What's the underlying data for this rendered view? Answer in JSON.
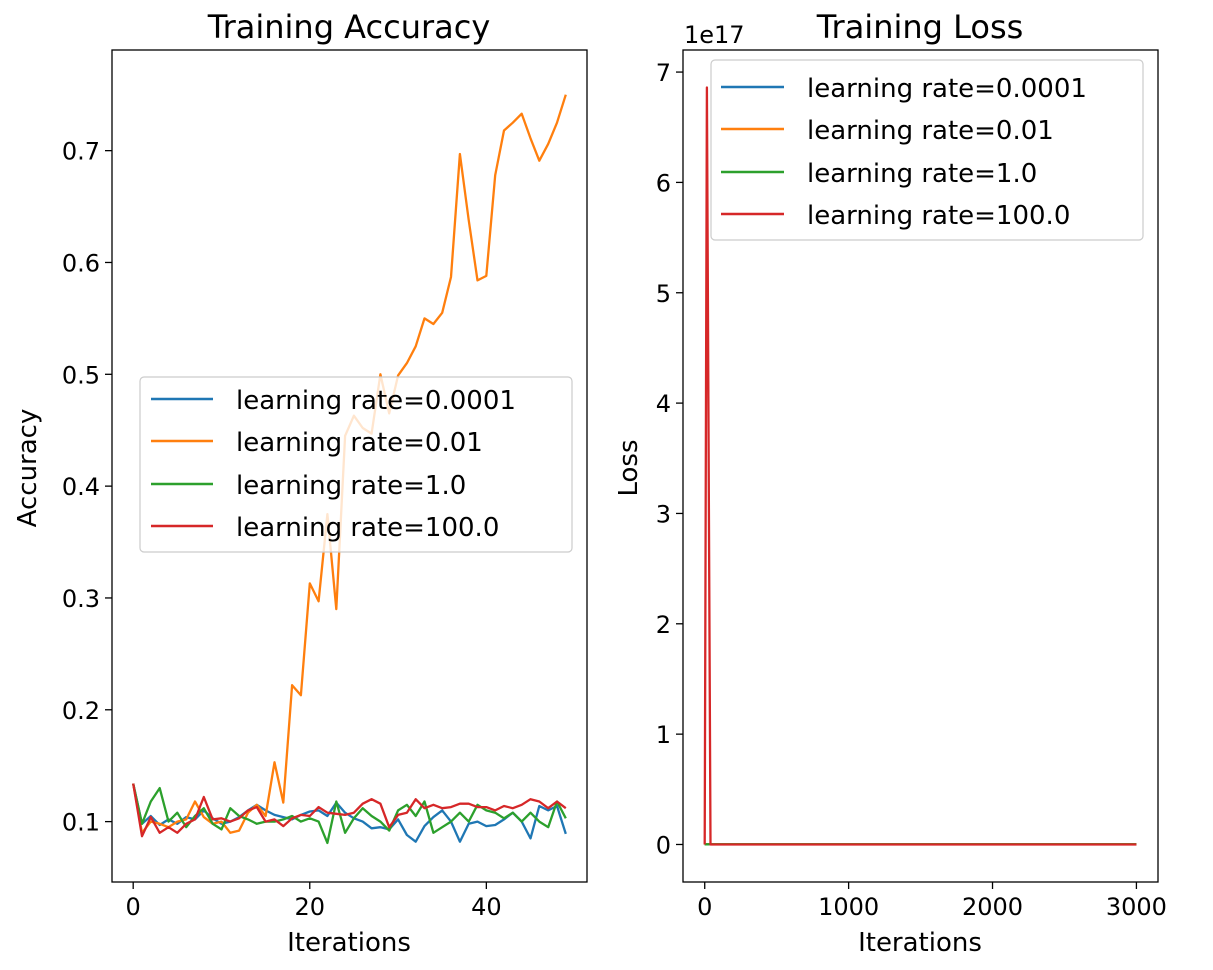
{
  "colors": {
    "lr_0001": "#1f77b4",
    "lr_001": "#ff7f0e",
    "lr_1": "#2ca02c",
    "lr_100": "#d62728"
  },
  "chart_data": [
    {
      "type": "line",
      "title": "Training Accuracy",
      "xlabel": "Iterations",
      "ylabel": "Accuracy",
      "xlim": [
        -2.4,
        51.4
      ],
      "ylim": [
        0.046,
        0.79
      ],
      "xticks": [
        0,
        20,
        40
      ],
      "xtick_labels": [
        "0",
        "20",
        "40"
      ],
      "yticks": [
        0.1,
        0.2,
        0.3,
        0.4,
        0.5,
        0.6,
        0.7
      ],
      "ytick_labels": [
        "0.1",
        "0.2",
        "0.3",
        "0.4",
        "0.5",
        "0.6",
        "0.7"
      ],
      "grid": false,
      "legend_loc": "center-left",
      "x": [
        0,
        1,
        2,
        3,
        4,
        5,
        6,
        7,
        8,
        9,
        10,
        11,
        12,
        13,
        14,
        15,
        16,
        17,
        18,
        19,
        20,
        21,
        22,
        23,
        24,
        25,
        26,
        27,
        28,
        29,
        30,
        31,
        32,
        33,
        34,
        35,
        36,
        37,
        38,
        39,
        40,
        41,
        42,
        43,
        44,
        45,
        46,
        47,
        48,
        49
      ],
      "series": [
        {
          "name": "learning rate=0.0001",
          "color_key": "lr_0001",
          "values": [
            0.134,
            0.098,
            0.105,
            0.097,
            0.102,
            0.098,
            0.104,
            0.102,
            0.11,
            0.103,
            0.098,
            0.1,
            0.104,
            0.11,
            0.115,
            0.11,
            0.106,
            0.104,
            0.102,
            0.106,
            0.109,
            0.11,
            0.105,
            0.117,
            0.108,
            0.103,
            0.1,
            0.094,
            0.095,
            0.093,
            0.102,
            0.088,
            0.082,
            0.096,
            0.104,
            0.11,
            0.1,
            0.082,
            0.098,
            0.1,
            0.096,
            0.097,
            0.102,
            0.108,
            0.1,
            0.085,
            0.114,
            0.11,
            0.114,
            0.089
          ]
        },
        {
          "name": "learning rate=0.01",
          "color_key": "lr_001",
          "values": [
            0.134,
            0.09,
            0.1,
            0.098,
            0.095,
            0.1,
            0.102,
            0.118,
            0.104,
            0.098,
            0.1,
            0.09,
            0.092,
            0.108,
            0.115,
            0.105,
            0.153,
            0.117,
            0.222,
            0.213,
            0.313,
            0.297,
            0.375,
            0.29,
            0.445,
            0.463,
            0.452,
            0.447,
            0.5,
            0.465,
            0.499,
            0.51,
            0.525,
            0.55,
            0.545,
            0.555,
            0.587,
            0.697,
            0.638,
            0.584,
            0.588,
            0.678,
            0.718,
            0.725,
            0.733,
            0.711,
            0.691,
            0.706,
            0.725,
            0.75
          ]
        },
        {
          "name": "learning rate=1.0",
          "color_key": "lr_1",
          "values": [
            0.134,
            0.098,
            0.118,
            0.13,
            0.1,
            0.108,
            0.095,
            0.105,
            0.112,
            0.098,
            0.093,
            0.112,
            0.105,
            0.102,
            0.098,
            0.1,
            0.1,
            0.102,
            0.105,
            0.1,
            0.103,
            0.1,
            0.081,
            0.118,
            0.09,
            0.103,
            0.112,
            0.105,
            0.1,
            0.092,
            0.11,
            0.115,
            0.105,
            0.118,
            0.09,
            0.095,
            0.1,
            0.108,
            0.1,
            0.115,
            0.11,
            0.108,
            0.103,
            0.108,
            0.1,
            0.108,
            0.1,
            0.095,
            0.118,
            0.103
          ]
        },
        {
          "name": "learning rate=100.0",
          "color_key": "lr_100",
          "values": [
            0.134,
            0.087,
            0.104,
            0.09,
            0.095,
            0.09,
            0.098,
            0.102,
            0.122,
            0.102,
            0.103,
            0.1,
            0.103,
            0.11,
            0.113,
            0.1,
            0.102,
            0.096,
            0.103,
            0.106,
            0.105,
            0.113,
            0.108,
            0.107,
            0.106,
            0.108,
            0.116,
            0.12,
            0.116,
            0.095,
            0.106,
            0.108,
            0.12,
            0.112,
            0.115,
            0.112,
            0.113,
            0.116,
            0.116,
            0.113,
            0.113,
            0.11,
            0.114,
            0.112,
            0.115,
            0.12,
            0.118,
            0.112,
            0.118,
            0.112
          ]
        }
      ]
    },
    {
      "type": "line",
      "title": "Training Loss",
      "xlabel": "Iterations",
      "ylabel": "Loss",
      "offset_text": "1e17",
      "scale": 1e+17,
      "xlim": [
        -151,
        3150
      ],
      "ylim": [
        -0.34,
        7.2
      ],
      "xticks": [
        0,
        1000,
        2000,
        3000
      ],
      "xtick_labels": [
        "0",
        "1000",
        "2000",
        "3000"
      ],
      "yticks": [
        0,
        1,
        2,
        3,
        4,
        5,
        6,
        7
      ],
      "ytick_labels": [
        "0",
        "1",
        "2",
        "3",
        "4",
        "5",
        "6",
        "7"
      ],
      "grid": false,
      "legend_loc": "upper-right",
      "series": [
        {
          "name": "learning rate=0.0001",
          "color_key": "lr_0001",
          "points": [
            [
              0,
              0.002
            ],
            [
              3000,
              0.002
            ]
          ]
        },
        {
          "name": "learning rate=0.01",
          "color_key": "lr_001",
          "points": [
            [
              0,
              0.002
            ],
            [
              3000,
              0.002
            ]
          ]
        },
        {
          "name": "learning rate=1.0",
          "color_key": "lr_1",
          "points": [
            [
              0,
              0.002
            ],
            [
              3000,
              0.002
            ]
          ]
        },
        {
          "name": "learning rate=100.0",
          "color_key": "lr_100",
          "points": [
            [
              0,
              0.0
            ],
            [
              15,
              6.86
            ],
            [
              40,
              0.0
            ],
            [
              3000,
              0.0
            ]
          ]
        }
      ]
    }
  ]
}
